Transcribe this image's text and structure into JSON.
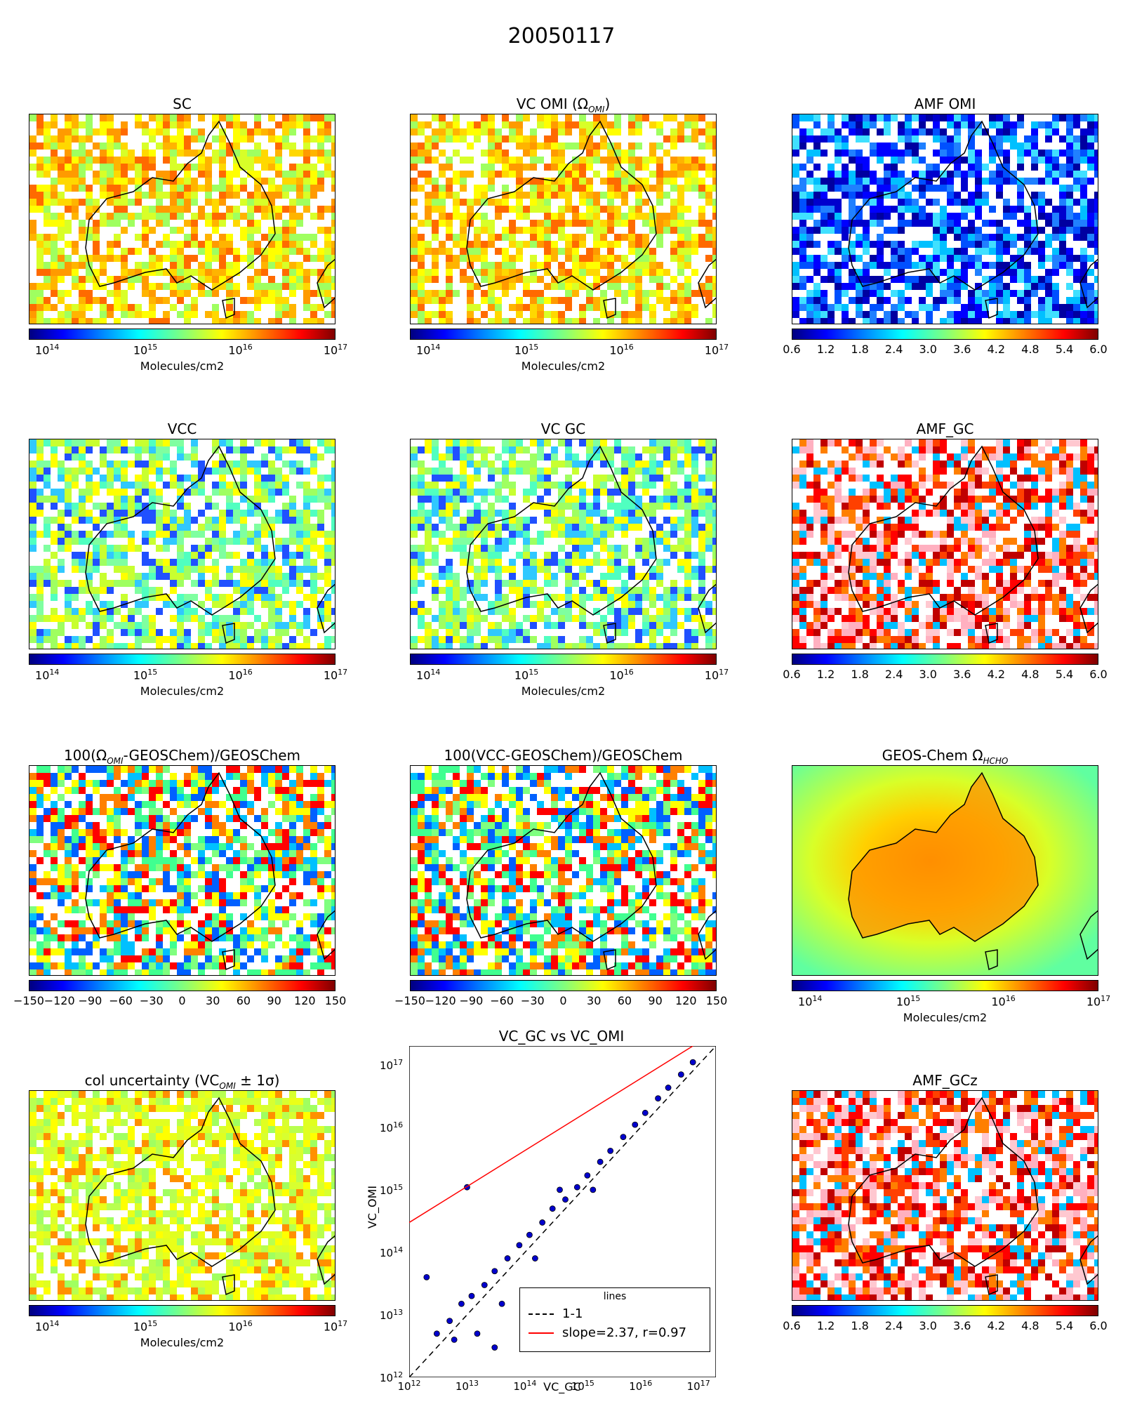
{
  "figure_title": "20050117",
  "panels": [
    {
      "title": "SC",
      "scale": "log",
      "ticks": [
        "10",
        "10",
        "10",
        "10"
      ],
      "exps": [
        "14",
        "15",
        "16",
        "17"
      ],
      "unit": "Molecules/cm2"
    },
    {
      "title": "VC OMI (Ω",
      "title_sub": "OMI",
      "title_tail": ")",
      "scale": "log",
      "ticks": [
        "10",
        "10",
        "10",
        "10"
      ],
      "exps": [
        "14",
        "15",
        "16",
        "17"
      ],
      "unit": "Molecules/cm2"
    },
    {
      "title": "AMF OMI",
      "scale": "lin",
      "ticks": [
        "0.6",
        "1.2",
        "1.8",
        "2.4",
        "3.0",
        "3.6",
        "4.2",
        "4.8",
        "5.4",
        "6.0"
      ],
      "unit": ""
    },
    {
      "title": "VCC",
      "scale": "log",
      "ticks": [
        "10",
        "10",
        "10",
        "10"
      ],
      "exps": [
        "14",
        "15",
        "16",
        "17"
      ],
      "unit": "Molecules/cm2"
    },
    {
      "title": "VC GC",
      "scale": "log",
      "ticks": [
        "10",
        "10",
        "10",
        "10"
      ],
      "exps": [
        "14",
        "15",
        "16",
        "17"
      ],
      "unit": "Molecules/cm2"
    },
    {
      "title": "AMF_GC",
      "scale": "lin",
      "ticks": [
        "0.6",
        "1.2",
        "1.8",
        "2.4",
        "3.0",
        "3.6",
        "4.2",
        "4.8",
        "5.4",
        "6.0"
      ],
      "unit": ""
    },
    {
      "title": "100(Ω",
      "title_sub": "OMI",
      "title_tail": "-GEOSChem)/GEOSChem",
      "scale": "pct",
      "ticks": [
        "−150",
        "−120",
        "−90",
        "−60",
        "−30",
        "0",
        "30",
        "60",
        "90",
        "120",
        "150"
      ],
      "unit": ""
    },
    {
      "title": "100(VCC-GEOSChem)/GEOSChem",
      "scale": "pct",
      "ticks": [
        "−150",
        "−120",
        "−90",
        "−60",
        "−30",
        "0",
        "30",
        "60",
        "90",
        "120",
        "150"
      ],
      "unit": ""
    },
    {
      "title": "GEOS-Chem Ω",
      "title_sub": "HCHO",
      "title_tail": "",
      "scale": "log",
      "ticks": [
        "10",
        "10",
        "10",
        "10"
      ],
      "exps": [
        "14",
        "15",
        "16",
        "17"
      ],
      "unit": "Molecules/cm2"
    },
    {
      "title": "col uncertainty (VC",
      "title_sub": "OMI",
      "title_tail": " ± 1σ)",
      "scale": "log",
      "ticks": [
        "10",
        "10",
        "10",
        "10"
      ],
      "exps": [
        "14",
        "15",
        "16",
        "17"
      ],
      "unit": "Molecules/cm2"
    },
    {
      "title": "AMF_GCz",
      "scale": "lin",
      "ticks": [
        "0.6",
        "1.2",
        "1.8",
        "2.4",
        "3.0",
        "3.6",
        "4.2",
        "4.8",
        "5.4",
        "6.0"
      ],
      "unit": ""
    }
  ],
  "chart_data": {
    "type": "scatter",
    "title": "VC_GC vs VC_OMI",
    "xlabel": "VC_GC",
    "ylabel": "VC_OMI",
    "xscale": "log",
    "yscale": "log",
    "xlim": [
      1000000000000.0,
      2e+17
    ],
    "ylim": [
      1000000000000.0,
      2e+17
    ],
    "x_ticks": [
      "10",
      "10",
      "10",
      "10",
      "10",
      "10"
    ],
    "x_tick_exps": [
      "12",
      "13",
      "14",
      "15",
      "16",
      "17"
    ],
    "y_ticks": [
      "10",
      "10",
      "10",
      "10",
      "10",
      "10"
    ],
    "y_tick_exps": [
      "12",
      "13",
      "14",
      "15",
      "16",
      "17"
    ],
    "legend_title": "lines",
    "legend_position": "lower right",
    "series": [
      {
        "name": "1-1",
        "type": "line",
        "style": "dashed",
        "color": "#000000",
        "slope": 1,
        "intercept": 0
      },
      {
        "name": "slope=2.37, r=0.97",
        "type": "line",
        "style": "solid",
        "color": "#ff0000",
        "slope": 2.37,
        "r": 0.97
      },
      {
        "type": "scatter",
        "color": "#0000cd",
        "points": [
          [
            3000000000000.0,
            5000000000000.0
          ],
          [
            5000000000000.0,
            8000000000000.0
          ],
          [
            8000000000000.0,
            15000000000000.0
          ],
          [
            12000000000000.0,
            20000000000000.0
          ],
          [
            20000000000000.0,
            30000000000000.0
          ],
          [
            30000000000000.0,
            50000000000000.0
          ],
          [
            50000000000000.0,
            80000000000000.0
          ],
          [
            80000000000000.0,
            130000000000000.0
          ],
          [
            120000000000000.0,
            190000000000000.0
          ],
          [
            200000000000000.0,
            300000000000000.0
          ],
          [
            300000000000000.0,
            500000000000000.0
          ],
          [
            500000000000000.0,
            700000000000000.0
          ],
          [
            800000000000000.0,
            1100000000000000.0
          ],
          [
            1200000000000000.0,
            1700000000000000.0
          ],
          [
            2000000000000000.0,
            2800000000000000.0
          ],
          [
            3000000000000000.0,
            4200000000000000.0
          ],
          [
            5000000000000000.0,
            7000000000000000.0
          ],
          [
            8000000000000000.0,
            1.1e+16
          ],
          [
            1.2e+16,
            1.7e+16
          ],
          [
            2e+16,
            2.9e+16
          ],
          [
            3e+16,
            4.3e+16
          ],
          [
            5e+16,
            7e+16
          ],
          [
            8e+16,
            1.1e+17
          ],
          [
            10000000000000.0,
            1100000000000000.0
          ],
          [
            2000000000000.0,
            40000000000000.0
          ],
          [
            40000000000000.0,
            15000000000000.0
          ],
          [
            6000000000000.0,
            4000000000000.0
          ],
          [
            15000000000000.0,
            5000000000000.0
          ],
          [
            150000000000000.0,
            80000000000000.0
          ],
          [
            400000000000000.0,
            1000000000000000.0
          ],
          [
            1500000000000000.0,
            1000000000000000.0
          ],
          [
            30000000000000.0,
            3000000000000.0
          ]
        ]
      }
    ]
  }
}
